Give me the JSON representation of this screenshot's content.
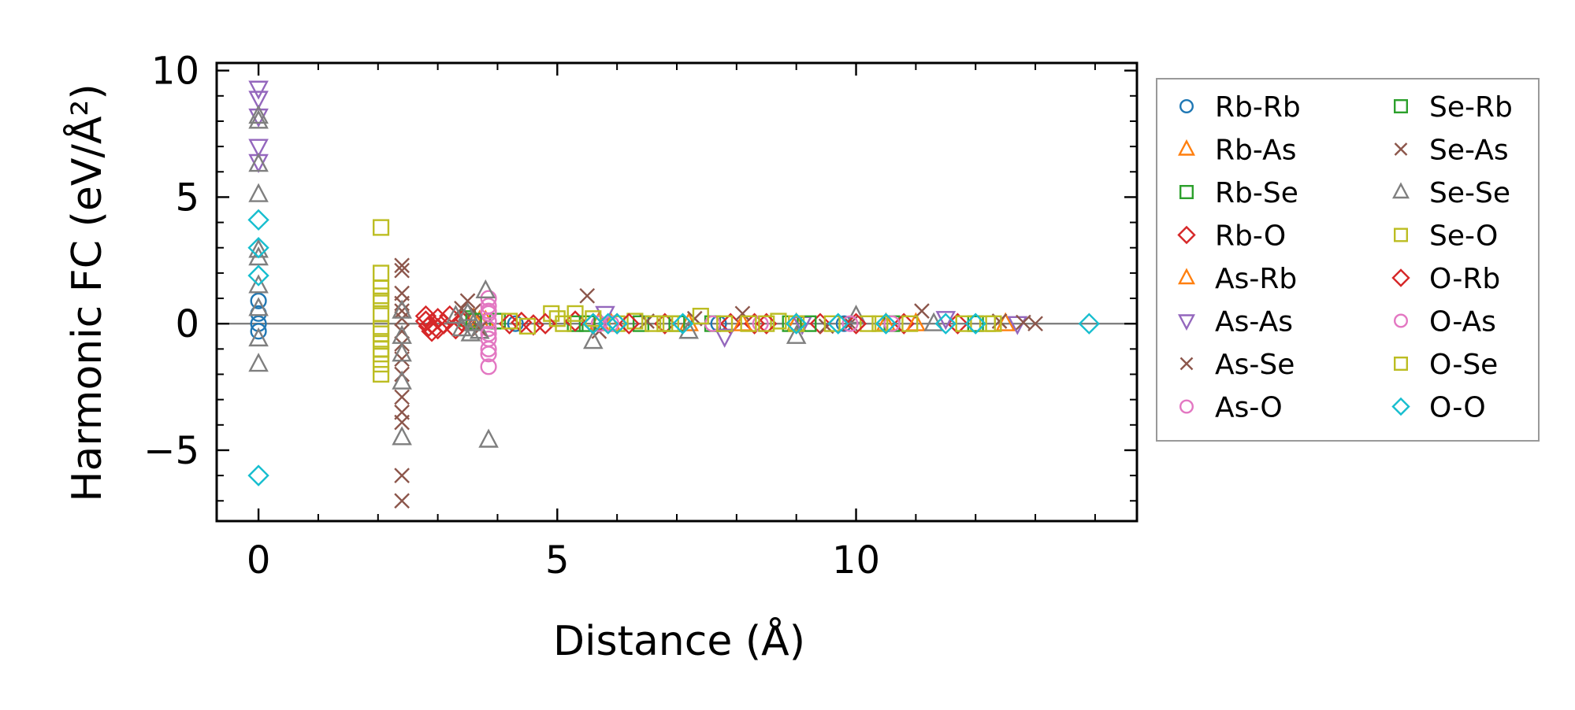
{
  "chart_data": {
    "type": "scatter",
    "xlabel": "Distance (Å)",
    "ylabel": "Harmonic FC (eV/Å²)",
    "xlim": [
      -0.7,
      14.7
    ],
    "ylim": [
      -7.8,
      10.3
    ],
    "xticks": [
      0,
      5,
      10
    ],
    "yticks": [
      -5,
      0,
      5,
      10
    ],
    "xtick_labels": [
      "0",
      "5",
      "10"
    ],
    "ytick_labels": [
      "−5",
      "0",
      "5",
      "10"
    ],
    "reference_line_y": 0,
    "grid": false,
    "legend_position": "outside-right",
    "series": [
      {
        "name": "Rb-Rb",
        "marker": "circle",
        "color": "#1f77b4",
        "points": [
          [
            0,
            0.9
          ],
          [
            0,
            0.4
          ],
          [
            0,
            0.0
          ],
          [
            0,
            -0.3
          ],
          [
            4.3,
            0.0
          ],
          [
            5.7,
            0.0
          ],
          [
            7.7,
            0.0
          ],
          [
            9.8,
            0.0
          ]
        ]
      },
      {
        "name": "Rb-As",
        "marker": "triangle-up",
        "color": "#ff7f0e",
        "points": [
          [
            3.6,
            0.2
          ],
          [
            3.8,
            0.1
          ],
          [
            5.7,
            0.05
          ],
          [
            7.2,
            0.0
          ],
          [
            9.0,
            0.0
          ],
          [
            10.5,
            0.0
          ],
          [
            12.5,
            0.0
          ]
        ]
      },
      {
        "name": "Rb-Se",
        "marker": "square",
        "color": "#2ca02c",
        "points": [
          [
            3.5,
            0.2
          ],
          [
            4.0,
            0.1
          ],
          [
            5.3,
            0.0
          ],
          [
            6.4,
            0.0
          ],
          [
            7.6,
            0.0
          ],
          [
            8.9,
            0.0
          ],
          [
            10.6,
            0.0
          ],
          [
            12.0,
            0.0
          ]
        ]
      },
      {
        "name": "Rb-O",
        "marker": "diamond",
        "color": "#d62728",
        "points": [
          [
            2.8,
            0.3
          ],
          [
            2.8,
            0.1
          ],
          [
            2.85,
            -0.1
          ],
          [
            2.9,
            -0.3
          ],
          [
            3.0,
            0.2
          ],
          [
            3.1,
            0.0
          ],
          [
            3.2,
            0.3
          ],
          [
            3.3,
            -0.2
          ],
          [
            3.4,
            0.1
          ],
          [
            4.2,
            0.0
          ],
          [
            4.4,
            0.05
          ],
          [
            4.6,
            -0.05
          ],
          [
            5.3,
            0.1
          ],
          [
            5.6,
            0.0
          ],
          [
            6.0,
            0.0
          ],
          [
            6.8,
            0.0
          ],
          [
            7.9,
            0.0
          ],
          [
            8.3,
            0.0
          ],
          [
            9.4,
            0.0
          ],
          [
            10.8,
            0.0
          ],
          [
            11.7,
            0.0
          ]
        ]
      },
      {
        "name": "As-Rb",
        "marker": "triangle-up",
        "color": "#ff7f0e",
        "points": [
          [
            3.7,
            0.1
          ],
          [
            5.9,
            0.0
          ],
          [
            8.1,
            0.0
          ],
          [
            11.0,
            0.0
          ]
        ]
      },
      {
        "name": "As-As",
        "marker": "triangle-down",
        "color": "#9467bd",
        "points": [
          [
            0,
            9.3
          ],
          [
            0,
            8.9
          ],
          [
            0,
            8.2
          ],
          [
            0,
            7.0
          ],
          [
            0,
            6.4
          ],
          [
            5.8,
            0.4
          ],
          [
            7.8,
            -0.5
          ],
          [
            9.1,
            0.0
          ],
          [
            11.5,
            0.2
          ],
          [
            12.7,
            0.0
          ]
        ]
      },
      {
        "name": "As-Se",
        "marker": "x",
        "color": "#8c564b",
        "points": [
          [
            2.4,
            2.3
          ],
          [
            2.4,
            2.1
          ],
          [
            2.4,
            1.2
          ],
          [
            2.4,
            0.8
          ],
          [
            2.4,
            0.5
          ],
          [
            2.4,
            0.2
          ],
          [
            2.4,
            -0.3
          ],
          [
            2.4,
            -0.8
          ],
          [
            2.4,
            -1.4
          ],
          [
            2.4,
            -2.0
          ],
          [
            2.4,
            -2.9
          ],
          [
            2.4,
            -3.5
          ],
          [
            2.4,
            -3.9
          ],
          [
            2.4,
            -6.0
          ],
          [
            2.4,
            -7.0
          ],
          [
            3.5,
            0.9
          ],
          [
            3.6,
            0.5
          ],
          [
            5.5,
            1.1
          ],
          [
            5.7,
            -0.3
          ],
          [
            7.3,
            0.2
          ],
          [
            8.1,
            0.4
          ],
          [
            9.5,
            -0.1
          ],
          [
            11.1,
            0.5
          ],
          [
            12.4,
            0.1
          ],
          [
            13.0,
            0.0
          ]
        ]
      },
      {
        "name": "As-O",
        "marker": "circle",
        "color": "#e377c2",
        "points": [
          [
            3.85,
            1.0
          ],
          [
            3.85,
            0.7
          ],
          [
            3.85,
            0.4
          ],
          [
            3.85,
            0.1
          ],
          [
            3.85,
            -0.2
          ],
          [
            3.85,
            -0.6
          ],
          [
            3.85,
            -1.2
          ],
          [
            3.85,
            -1.7
          ],
          [
            5.7,
            0.0
          ],
          [
            7.6,
            0.0
          ],
          [
            8.4,
            0.0
          ],
          [
            10.6,
            0.0
          ]
        ]
      },
      {
        "name": "Se-Rb",
        "marker": "square",
        "color": "#2ca02c",
        "points": [
          [
            3.6,
            0.1
          ],
          [
            5.5,
            0.0
          ],
          [
            7.0,
            0.0
          ],
          [
            9.2,
            0.0
          ]
        ]
      },
      {
        "name": "Se-As",
        "marker": "x",
        "color": "#8c564b",
        "points": [
          [
            3.4,
            0.6
          ],
          [
            3.7,
            -0.2
          ],
          [
            6.5,
            0.1
          ],
          [
            9.9,
            0.0
          ],
          [
            12.8,
            0.05
          ]
        ]
      },
      {
        "name": "Se-Se",
        "marker": "triangle-up",
        "color": "#7f7f7f",
        "points": [
          [
            0,
            8.2
          ],
          [
            0,
            8.0
          ],
          [
            0,
            6.3
          ],
          [
            0,
            5.1
          ],
          [
            0,
            2.9
          ],
          [
            0,
            2.6
          ],
          [
            0,
            1.5
          ],
          [
            0,
            0.6
          ],
          [
            0,
            -0.6
          ],
          [
            0,
            -1.6
          ],
          [
            2.4,
            0.5
          ],
          [
            2.4,
            -0.5
          ],
          [
            2.4,
            -1.2
          ],
          [
            2.4,
            -2.3
          ],
          [
            2.4,
            -4.5
          ],
          [
            3.3,
            0.3
          ],
          [
            3.4,
            -0.2
          ],
          [
            3.5,
            0.4
          ],
          [
            3.55,
            -0.4
          ],
          [
            3.6,
            0.0
          ],
          [
            3.7,
            -0.3
          ],
          [
            3.8,
            1.3
          ],
          [
            3.85,
            -4.6
          ],
          [
            5.6,
            -0.7
          ],
          [
            7.2,
            -0.3
          ],
          [
            9.0,
            -0.5
          ],
          [
            10.0,
            0.3
          ],
          [
            11.3,
            0.0
          ]
        ]
      },
      {
        "name": "Se-O",
        "marker": "square",
        "color": "#bcbd22",
        "points": [
          [
            2.05,
            3.8
          ],
          [
            2.05,
            2.0
          ],
          [
            2.05,
            1.4
          ],
          [
            2.05,
            0.9
          ],
          [
            2.05,
            0.4
          ],
          [
            2.05,
            -0.2
          ],
          [
            2.05,
            -0.7
          ],
          [
            2.05,
            -1.2
          ],
          [
            2.05,
            -1.6
          ],
          [
            2.05,
            -2.0
          ],
          [
            4.2,
            0.1
          ],
          [
            4.5,
            -0.1
          ],
          [
            4.9,
            0.4
          ],
          [
            5.1,
            0.0
          ],
          [
            5.3,
            0.4
          ],
          [
            5.6,
            0.2
          ],
          [
            6.0,
            0.0
          ],
          [
            6.3,
            0.1
          ],
          [
            6.6,
            0.0
          ],
          [
            6.9,
            0.0
          ],
          [
            7.4,
            0.3
          ],
          [
            7.8,
            0.0
          ],
          [
            8.2,
            0.0
          ],
          [
            8.7,
            0.1
          ],
          [
            9.0,
            0.0
          ],
          [
            9.6,
            0.0
          ],
          [
            10.2,
            0.0
          ],
          [
            10.9,
            0.0
          ],
          [
            11.8,
            0.0
          ],
          [
            12.3,
            0.0
          ]
        ]
      },
      {
        "name": "O-Rb",
        "marker": "diamond",
        "color": "#d62728",
        "points": [
          [
            2.9,
            0.0
          ],
          [
            3.0,
            -0.2
          ],
          [
            4.8,
            0.0
          ],
          [
            6.2,
            0.0
          ],
          [
            8.5,
            0.0
          ],
          [
            10.0,
            0.0
          ]
        ]
      },
      {
        "name": "O-As",
        "marker": "circle",
        "color": "#e377c2",
        "points": [
          [
            3.85,
            0.5
          ],
          [
            3.85,
            -0.4
          ],
          [
            3.85,
            -1.0
          ],
          [
            5.9,
            0.0
          ],
          [
            9.9,
            0.0
          ]
        ]
      },
      {
        "name": "O-Se",
        "marker": "square",
        "color": "#bcbd22",
        "points": [
          [
            2.05,
            1.1
          ],
          [
            2.05,
            -0.4
          ],
          [
            2.05,
            -1.0
          ],
          [
            5.0,
            0.2
          ],
          [
            6.8,
            0.0
          ],
          [
            8.5,
            0.0
          ],
          [
            10.4,
            0.0
          ],
          [
            12.2,
            0.0
          ]
        ]
      },
      {
        "name": "O-O",
        "marker": "diamond",
        "color": "#17becf",
        "points": [
          [
            0,
            4.1
          ],
          [
            0,
            3.0
          ],
          [
            0,
            1.9
          ],
          [
            0,
            -6.0
          ],
          [
            5.6,
            0.0
          ],
          [
            5.85,
            0.0
          ],
          [
            6.0,
            0.0
          ],
          [
            7.1,
            0.0
          ],
          [
            9.0,
            0.0
          ],
          [
            9.7,
            0.0
          ],
          [
            10.5,
            0.0
          ],
          [
            11.5,
            0.0
          ],
          [
            12.0,
            0.0
          ],
          [
            13.9,
            0.0
          ]
        ]
      }
    ]
  },
  "legend_columns": [
    [
      "Rb-Rb",
      "Rb-As",
      "Rb-Se",
      "Rb-O",
      "As-Rb",
      "As-As",
      "As-Se",
      "As-O"
    ],
    [
      "Se-Rb",
      "Se-As",
      "Se-Se",
      "Se-O",
      "O-Rb",
      "O-As",
      "O-Se",
      "O-O"
    ]
  ]
}
